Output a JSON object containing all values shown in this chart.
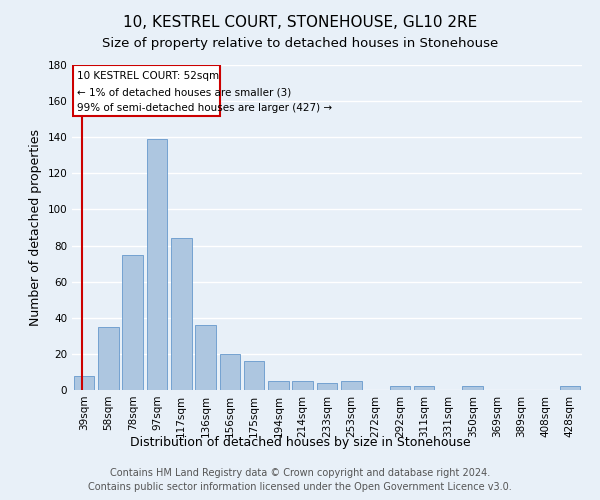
{
  "title": "10, KESTREL COURT, STONEHOUSE, GL10 2RE",
  "subtitle": "Size of property relative to detached houses in Stonehouse",
  "xlabel": "Distribution of detached houses by size in Stonehouse",
  "ylabel": "Number of detached properties",
  "bar_labels": [
    "39sqm",
    "58sqm",
    "78sqm",
    "97sqm",
    "117sqm",
    "136sqm",
    "156sqm",
    "175sqm",
    "194sqm",
    "214sqm",
    "233sqm",
    "253sqm",
    "272sqm",
    "292sqm",
    "311sqm",
    "331sqm",
    "350sqm",
    "369sqm",
    "389sqm",
    "408sqm",
    "428sqm"
  ],
  "bar_values": [
    8,
    35,
    75,
    139,
    84,
    36,
    20,
    16,
    5,
    5,
    4,
    5,
    0,
    2,
    2,
    0,
    2,
    0,
    0,
    0,
    2
  ],
  "bar_color": "#adc6e0",
  "bar_edge_color": "#6699cc",
  "bar_width": 0.85,
  "ylim": [
    0,
    180
  ],
  "yticks": [
    0,
    20,
    40,
    60,
    80,
    100,
    120,
    140,
    160,
    180
  ],
  "property_label": "10 KESTREL COURT: 52sqm",
  "annotation_line1": "← 1% of detached houses are smaller (3)",
  "annotation_line2": "99% of semi-detached houses are larger (427) →",
  "annotation_box_color": "#cc0000",
  "footer_line1": "Contains HM Land Registry data © Crown copyright and database right 2024.",
  "footer_line2": "Contains public sector information licensed under the Open Government Licence v3.0.",
  "bg_color": "#e8f0f8",
  "grid_color": "#ffffff",
  "title_fontsize": 11,
  "subtitle_fontsize": 9.5,
  "axis_label_fontsize": 9,
  "tick_fontsize": 7.5,
  "footer_fontsize": 7
}
